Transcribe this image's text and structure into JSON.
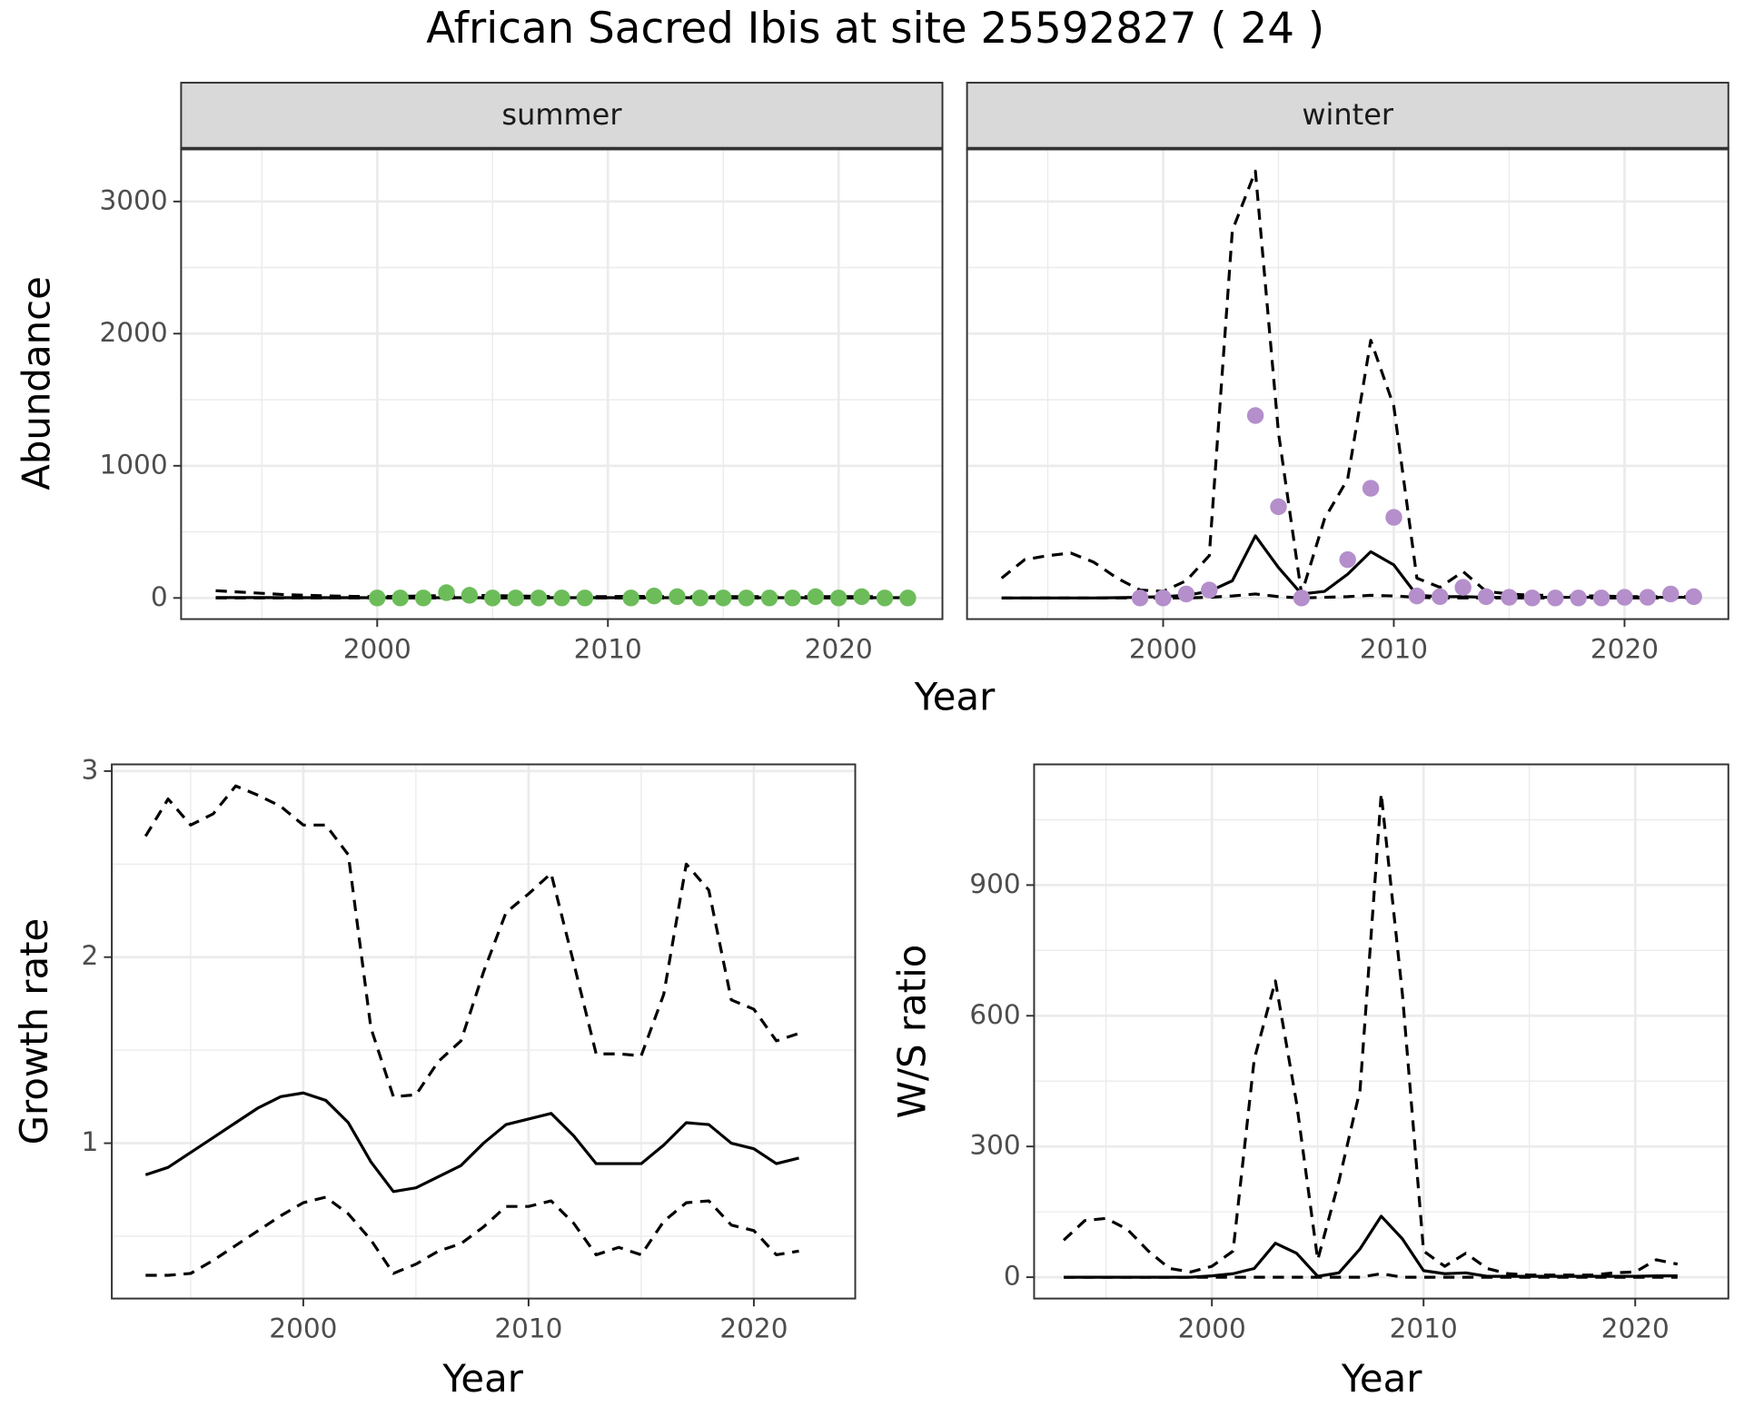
{
  "title": "African Sacred Ibis at site 25592827 ( 24 )",
  "chart_data": [
    {
      "type": "line",
      "facet": "summer",
      "xlabel": "Year",
      "ylabel": "Abundance",
      "x": [
        1993,
        1994,
        1995,
        1996,
        1997,
        1998,
        1999,
        2000,
        2001,
        2002,
        2003,
        2004,
        2005,
        2006,
        2007,
        2008,
        2009,
        2010,
        2011,
        2012,
        2013,
        2014,
        2015,
        2016,
        2017,
        2018,
        2019,
        2020,
        2021,
        2022,
        2023
      ],
      "xlim": [
        1991.5,
        2024.5
      ],
      "ylim": [
        -160,
        3400
      ],
      "xticks": [
        2000,
        2010,
        2020
      ],
      "yticks": [
        0,
        1000,
        2000,
        3000
      ],
      "grid": true,
      "series": [
        {
          "style": "line",
          "linetype": "solid",
          "color": "#000000",
          "values": [
            3,
            3,
            3,
            2,
            2,
            2,
            2,
            2,
            2,
            2,
            2,
            2,
            2,
            2,
            2,
            2,
            2,
            2,
            2,
            2,
            2,
            2,
            2,
            2,
            2,
            2,
            2,
            2,
            2,
            2,
            2
          ]
        },
        {
          "style": "line",
          "linetype": "dashed",
          "color": "#000000",
          "values": [
            55,
            45,
            35,
            25,
            20,
            15,
            12,
            10,
            12,
            15,
            18,
            20,
            18,
            15,
            12,
            10,
            10,
            10,
            12,
            12,
            10,
            10,
            10,
            10,
            10,
            10,
            10,
            10,
            10,
            10,
            10
          ]
        },
        {
          "style": "line",
          "linetype": "dashed",
          "color": "#000000",
          "values": [
            0,
            0,
            0,
            0,
            0,
            0,
            0,
            0,
            0,
            0,
            0,
            0,
            0,
            0,
            0,
            0,
            0,
            0,
            0,
            0,
            0,
            0,
            0,
            0,
            0,
            0,
            0,
            0,
            0,
            0,
            0
          ]
        },
        {
          "style": "points",
          "color": "#6cbd5a",
          "values": [
            null,
            null,
            null,
            null,
            null,
            null,
            null,
            0,
            0,
            0,
            40,
            20,
            0,
            0,
            0,
            0,
            0,
            null,
            0,
            15,
            10,
            0,
            0,
            0,
            0,
            0,
            10,
            0,
            10,
            0,
            0
          ]
        }
      ]
    },
    {
      "type": "line",
      "facet": "winter",
      "x": [
        1993,
        1994,
        1995,
        1996,
        1997,
        1998,
        1999,
        2000,
        2001,
        2002,
        2003,
        2004,
        2005,
        2006,
        2007,
        2008,
        2009,
        2010,
        2011,
        2012,
        2013,
        2014,
        2015,
        2016,
        2017,
        2018,
        2019,
        2020,
        2021,
        2022,
        2023
      ],
      "xlim": [
        1991.5,
        2024.5
      ],
      "xticks": [
        2000,
        2010,
        2020
      ],
      "grid": true,
      "series": [
        {
          "style": "line",
          "linetype": "solid",
          "color": "#000000",
          "values": [
            0,
            0,
            0,
            0,
            0,
            2,
            5,
            10,
            20,
            50,
            130,
            470,
            230,
            30,
            50,
            180,
            350,
            250,
            20,
            10,
            10,
            5,
            5,
            5,
            5,
            5,
            5,
            5,
            5,
            5,
            5
          ]
        },
        {
          "style": "line",
          "linetype": "dashed",
          "color": "#000000",
          "values": [
            150,
            290,
            320,
            340,
            270,
            150,
            60,
            50,
            130,
            320,
            2780,
            3230,
            1250,
            30,
            600,
            900,
            1950,
            1450,
            150,
            80,
            200,
            50,
            30,
            20,
            20,
            15,
            15,
            10,
            10,
            10,
            10
          ]
        },
        {
          "style": "line",
          "linetype": "dashed",
          "color": "#000000",
          "values": [
            0,
            0,
            0,
            0,
            0,
            0,
            0,
            0,
            0,
            5,
            15,
            30,
            10,
            0,
            5,
            10,
            20,
            15,
            5,
            0,
            0,
            0,
            0,
            0,
            0,
            0,
            0,
            0,
            0,
            0,
            0
          ]
        },
        {
          "style": "points",
          "color": "#b48fcb",
          "values": [
            null,
            null,
            null,
            null,
            null,
            null,
            0,
            0,
            30,
            60,
            null,
            1380,
            690,
            0,
            null,
            290,
            830,
            610,
            15,
            10,
            80,
            10,
            5,
            0,
            0,
            0,
            0,
            5,
            5,
            30,
            10
          ]
        }
      ]
    },
    {
      "type": "line",
      "xlabel": "Year",
      "ylabel": "Growth rate",
      "x": [
        1993,
        1994,
        1995,
        1996,
        1997,
        1998,
        1999,
        2000,
        2001,
        2002,
        2003,
        2004,
        2005,
        2006,
        2007,
        2008,
        2009,
        2010,
        2011,
        2012,
        2013,
        2014,
        2015,
        2016,
        2017,
        2018,
        2019,
        2020,
        2021,
        2022
      ],
      "xlim": [
        1991.5,
        2024.5
      ],
      "ylim": [
        0.165,
        3.036
      ],
      "xticks": [
        2000,
        2010,
        2020
      ],
      "yticks": [
        1,
        2,
        3
      ],
      "grid": true,
      "series": [
        {
          "style": "line",
          "linetype": "solid",
          "color": "#000000",
          "values": [
            0.83,
            0.87,
            0.95,
            1.03,
            1.11,
            1.19,
            1.25,
            1.27,
            1.23,
            1.11,
            0.9,
            0.74,
            0.76,
            0.82,
            0.88,
            1.0,
            1.1,
            1.13,
            1.16,
            1.04,
            0.89,
            0.89,
            0.89,
            0.99,
            1.11,
            1.1,
            1.0,
            0.97,
            0.89,
            0.92
          ]
        },
        {
          "style": "line",
          "linetype": "dashed",
          "color": "#000000",
          "values": [
            2.65,
            2.85,
            2.71,
            2.77,
            2.92,
            2.87,
            2.81,
            2.71,
            2.71,
            2.55,
            1.62,
            1.25,
            1.26,
            1.44,
            1.55,
            1.92,
            2.24,
            2.34,
            2.45,
            1.97,
            1.48,
            1.48,
            1.47,
            1.8,
            2.5,
            2.36,
            1.77,
            1.72,
            1.55,
            1.59
          ]
        },
        {
          "style": "line",
          "linetype": "dashed",
          "color": "#000000",
          "values": [
            0.29,
            0.29,
            0.3,
            0.37,
            0.45,
            0.53,
            0.61,
            0.68,
            0.71,
            0.62,
            0.48,
            0.3,
            0.35,
            0.42,
            0.46,
            0.55,
            0.66,
            0.66,
            0.69,
            0.57,
            0.4,
            0.44,
            0.4,
            0.58,
            0.68,
            0.69,
            0.56,
            0.53,
            0.4,
            0.42
          ]
        }
      ]
    },
    {
      "type": "line",
      "xlabel": "Year",
      "ylabel": "W/S ratio",
      "x": [
        1993,
        1994,
        1995,
        1996,
        1997,
        1998,
        1999,
        2000,
        2001,
        2002,
        2003,
        2004,
        2005,
        2006,
        2007,
        2008,
        2009,
        2010,
        2011,
        2012,
        2013,
        2014,
        2015,
        2016,
        2017,
        2018,
        2019,
        2020,
        2021,
        2022
      ],
      "xlim": [
        1991.6,
        2024.4
      ],
      "ylim": [
        -49,
        1177
      ],
      "xticks": [
        2000,
        2010,
        2020
      ],
      "yticks": [
        0,
        300,
        600,
        900
      ],
      "grid": true,
      "series": [
        {
          "style": "line",
          "linetype": "solid",
          "color": "#000000",
          "values": [
            0,
            0,
            0,
            0,
            0,
            0,
            0,
            3,
            8,
            20,
            78,
            55,
            2,
            10,
            65,
            140,
            88,
            15,
            8,
            10,
            2,
            2,
            2,
            2,
            2,
            2,
            2,
            2,
            3,
            3
          ]
        },
        {
          "style": "line",
          "linetype": "dashed",
          "color": "#000000",
          "values": [
            85,
            130,
            135,
            110,
            60,
            20,
            12,
            25,
            60,
            500,
            680,
            400,
            40,
            220,
            430,
            1110,
            650,
            60,
            25,
            55,
            20,
            8,
            5,
            5,
            5,
            5,
            10,
            12,
            40,
            30
          ]
        },
        {
          "style": "line",
          "linetype": "dashed",
          "color": "#000000",
          "values": [
            0,
            0,
            0,
            0,
            0,
            0,
            0,
            0,
            0,
            0,
            0,
            0,
            0,
            0,
            0,
            8,
            0,
            0,
            0,
            0,
            0,
            0,
            0,
            0,
            0,
            0,
            0,
            0,
            0,
            0
          ]
        }
      ]
    }
  ]
}
